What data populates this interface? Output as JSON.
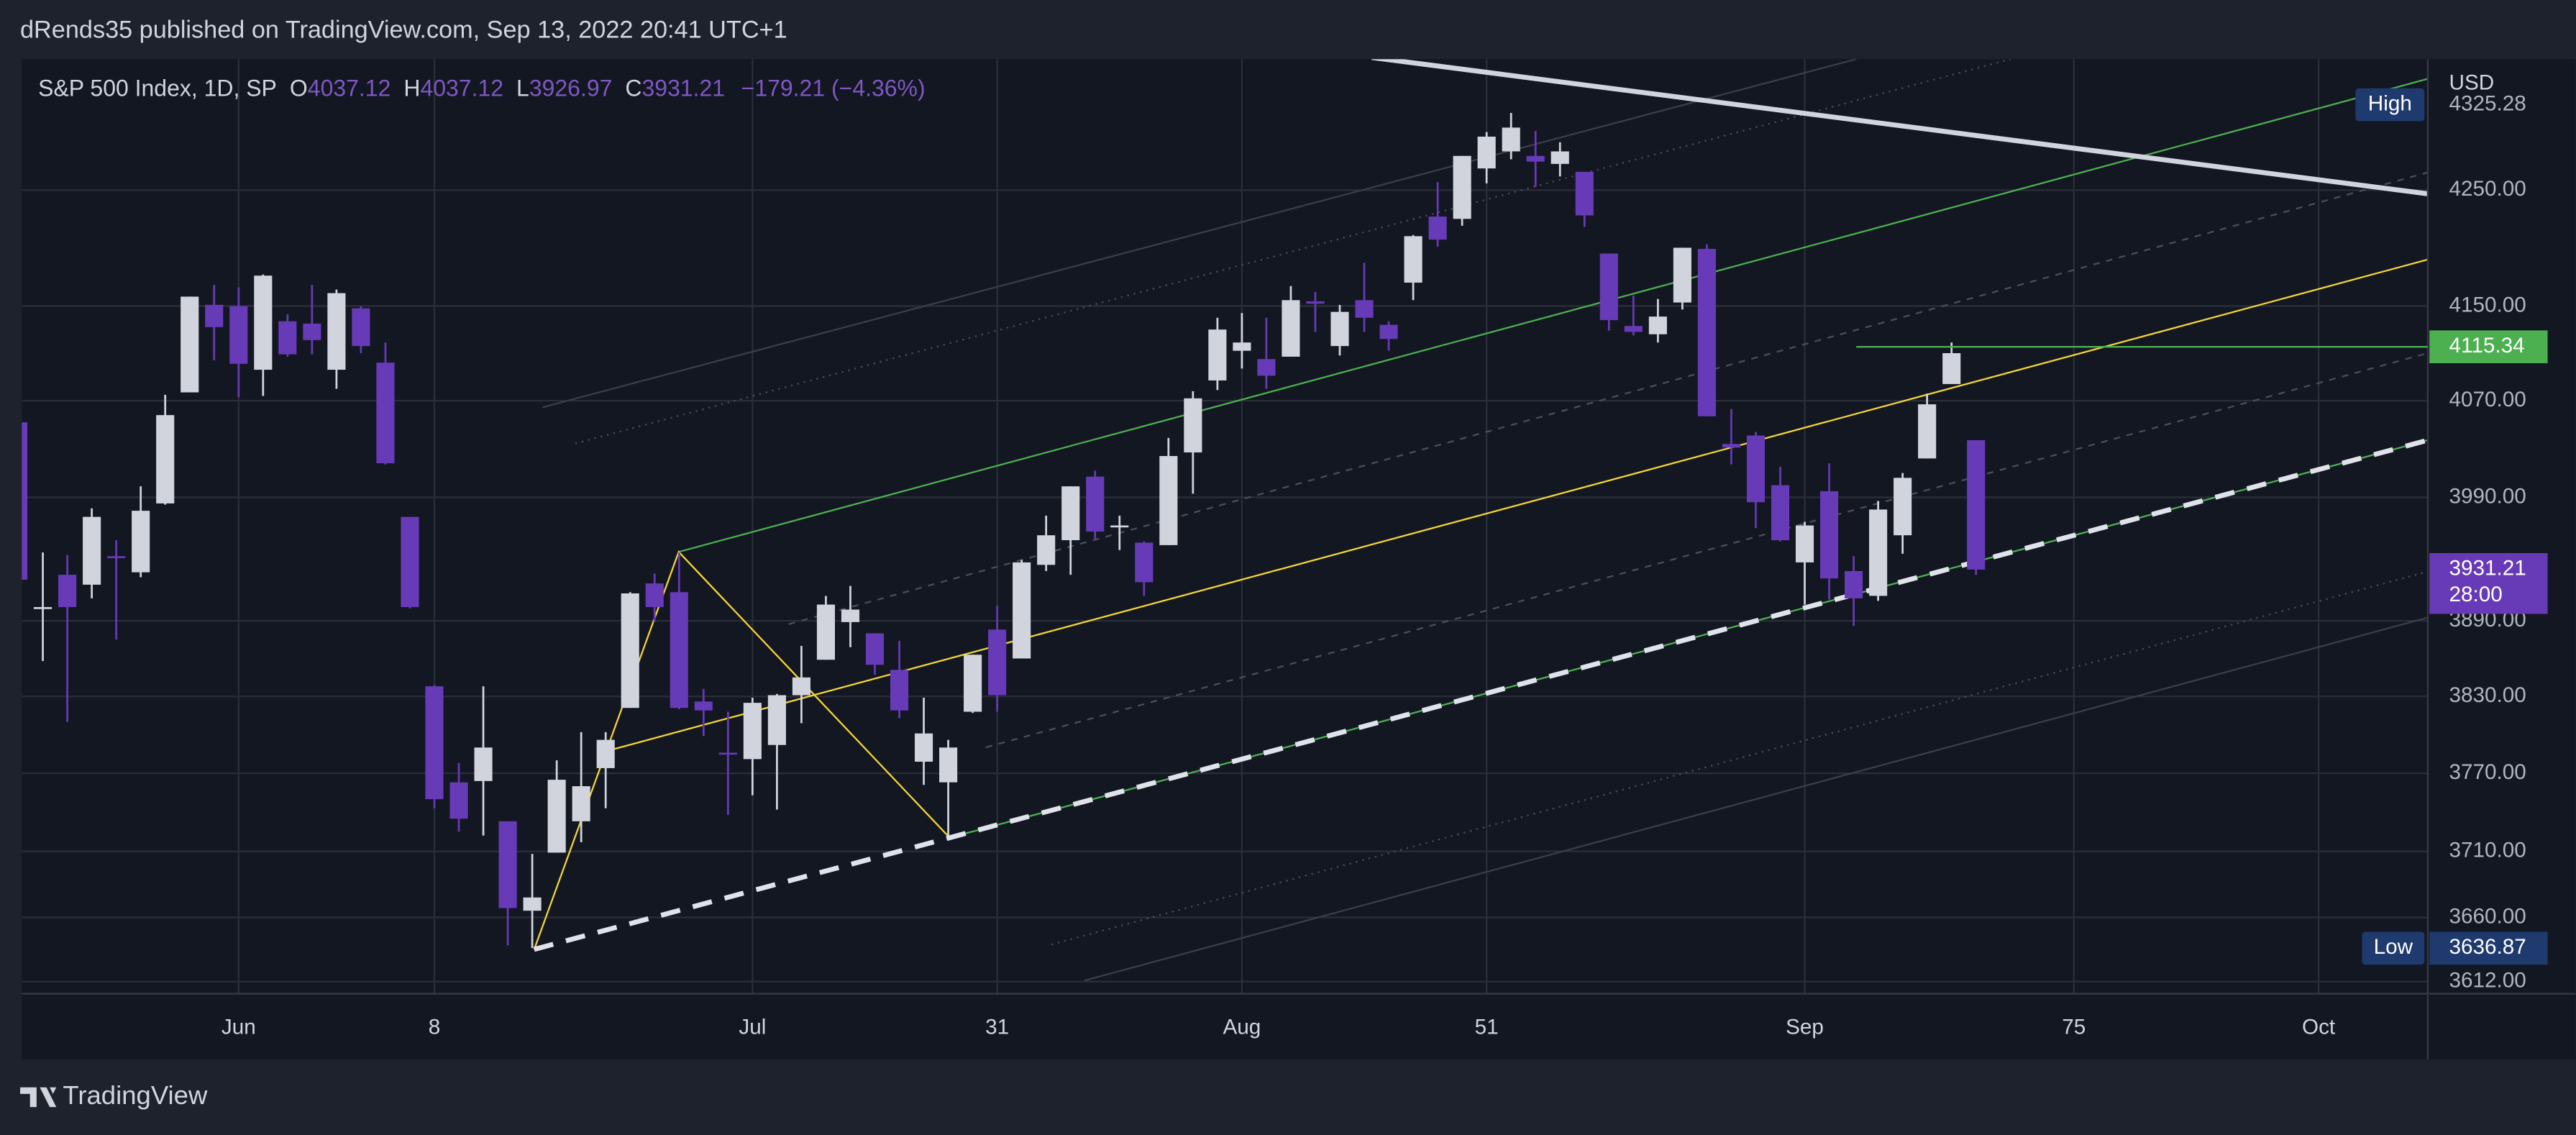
{
  "header": "dRends35 published on TradingView.com, Sep 13, 2022 20:41 UTC+1",
  "footer": "TradingView",
  "chart_data": {
    "type": "candlestick",
    "legend": {
      "symbol": "S&P 500 Index, 1D, SP",
      "o": "O",
      "h": "H",
      "l": "L",
      "c": "C",
      "change": "−179.21 (−4.36%)"
    },
    "currency": "USD",
    "x": [
      -9,
      -8,
      -7,
      -6,
      -5,
      -4,
      -3,
      -2,
      -1,
      0,
      1,
      2,
      3,
      4,
      5,
      6,
      7,
      8,
      9,
      10,
      11,
      12,
      13,
      14,
      15,
      16,
      17,
      18,
      19,
      20,
      21,
      22,
      23,
      24,
      25,
      26,
      27,
      28,
      29,
      30,
      31,
      32,
      33,
      34,
      35,
      36,
      37,
      38,
      39,
      40,
      41,
      42,
      43,
      44,
      45,
      46,
      47,
      48,
      49,
      50,
      51,
      52,
      53,
      54,
      55,
      56,
      57,
      58,
      59,
      60,
      61,
      62,
      63,
      64,
      65,
      66,
      67,
      68,
      69,
      70,
      71
    ],
    "open": [
      4052,
      3900,
      3927,
      3919,
      3942,
      3929,
      3985,
      4077,
      4151,
      4150,
      4096,
      4137,
      4135,
      4096,
      4148,
      4102,
      3974,
      3838,
      3763,
      3764,
      3733,
      3665,
      3709,
      3733,
      3774,
      3821,
      3920,
      3913,
      3826,
      3786,
      3781,
      3792,
      3831,
      3859,
      3889,
      3880,
      3851,
      3779,
      3763,
      3818,
      3883,
      3860,
      3935,
      3955,
      4007,
      3966,
      3953,
      3951,
      4027,
      4087,
      4112,
      4105,
      4107,
      4154,
      4116,
      4155,
      4134,
      4170,
      4227,
      4225,
      4269,
      4284,
      4280,
      4273,
      4266,
      4195,
      4133,
      4126,
      4153,
      4199,
      4034,
      4041,
      4000,
      3937,
      3995,
      3930,
      3910,
      3959,
      4022,
      4084,
      4037.12
    ],
    "high": [
      4052,
      3945,
      3943,
      3981,
      3955,
      3999,
      4075,
      4158,
      4168,
      4166,
      4177,
      4143,
      4168,
      4164,
      4150,
      4119,
      3974,
      3839,
      3778,
      3838,
      3733,
      3708,
      3780,
      3802,
      3802,
      3913,
      3928,
      3945,
      3836,
      3818,
      3829,
      3832,
      3870,
      3910,
      3918,
      3880,
      3874,
      3829,
      3796,
      3863,
      3902,
      3939,
      3975,
      3999,
      4012,
      3975,
      3954,
      4039,
      4078,
      4140,
      4144,
      4140,
      4167,
      4162,
      4151,
      4187,
      4137,
      4211,
      4257,
      4280,
      4301,
      4318,
      4302,
      4292,
      4266,
      4195,
      4159,
      4156,
      4200,
      4203,
      4063,
      4044,
      4015,
      3970,
      4018,
      3942,
      3987,
      4010,
      4076,
      4119,
      4037.12
    ],
    "low": [
      3911,
      3858,
      3810,
      3908,
      3875,
      3925,
      3984,
      4077,
      4104,
      4073,
      4074,
      4107,
      4109,
      4080,
      4110,
      4017,
      3900,
      3743,
      3725,
      3722,
      3639,
      3637,
      3709,
      3717,
      3743,
      3821,
      3889,
      3820,
      3799,
      3738,
      3753,
      3742,
      3809,
      3859,
      3869,
      3847,
      3813,
      3761,
      3722,
      3817,
      3818,
      3860,
      3930,
      3927,
      3956,
      3947,
      3910,
      3951,
      3993,
      4079,
      4097,
      4080,
      4107,
      4128,
      4108,
      4128,
      4112,
      4155,
      4201,
      4219,
      4256,
      4277,
      4253,
      4262,
      4218,
      4129,
      4125,
      4119,
      4147,
      4057,
      4017,
      3965,
      3954,
      3903,
      3907,
      3886,
      3906,
      3944,
      4022,
      4084,
      3926.97
    ],
    "close": [
      3923,
      3901,
      3901,
      3974,
      3941,
      3979,
      4058,
      4158,
      4132,
      4101,
      4176,
      4109,
      4121,
      4161,
      4116,
      4018,
      3901,
      3750,
      3735,
      3790,
      3667,
      3675,
      3765,
      3760,
      3796,
      3912,
      3901,
      3821,
      3819,
      3785,
      3825,
      3831,
      3845,
      3903,
      3899,
      3855,
      3819,
      3801,
      3790,
      3863,
      3831,
      3937,
      3959,
      3999,
      3962,
      3967,
      3921,
      4024,
      4072,
      4130,
      4119,
      4091,
      4155,
      4152,
      4145,
      4140,
      4122,
      4210,
      4207,
      4280,
      4297,
      4305,
      4275,
      4284,
      4228,
      4138,
      4128,
      4141,
      4200,
      4057,
      4031,
      3986,
      3955,
      3967,
      3924,
      3908,
      3980,
      4006,
      4067,
      4110,
      3931.21
    ],
    "up_color": "#d1d4dc",
    "down_color": "#673ab7",
    "log_scale": true,
    "grid": true,
    "xlim": [
      -8.86,
      89.46
    ],
    "ylim": [
      3603,
      4366
    ],
    "xticks": [
      {
        "value": 0,
        "label": "Jun"
      },
      8,
      {
        "value": 21,
        "label": "Jul"
      },
      31,
      {
        "value": 41,
        "label": "Aug"
      },
      51,
      {
        "value": 64,
        "label": "Sep"
      },
      75,
      {
        "value": 85,
        "label": "Oct"
      }
    ],
    "yticks": [
      {
        "value": 4250,
        "label": "4250.00"
      },
      {
        "value": 4150,
        "label": "4150.00"
      },
      {
        "value": 4070,
        "label": "4070.00"
      },
      {
        "value": 3990,
        "label": "3990.00"
      },
      {
        "value": 3890,
        "label": "3890.00"
      },
      {
        "value": 3830,
        "label": "3830.00"
      },
      {
        "value": 3770,
        "label": "3770.00"
      },
      {
        "value": 3710,
        "label": "3710.00"
      },
      {
        "value": 3660,
        "label": "3660.00"
      },
      {
        "value": 3612,
        "label": "3612.00"
      }
    ],
    "high_marker": {
      "label": "High",
      "value": 4325.28
    },
    "low_marker": {
      "label": "Low",
      "value": 3636.87
    },
    "level_line": {
      "value": 4115.34,
      "color": "#4caf50"
    },
    "last_price": {
      "countdown": "28:00"
    }
  }
}
